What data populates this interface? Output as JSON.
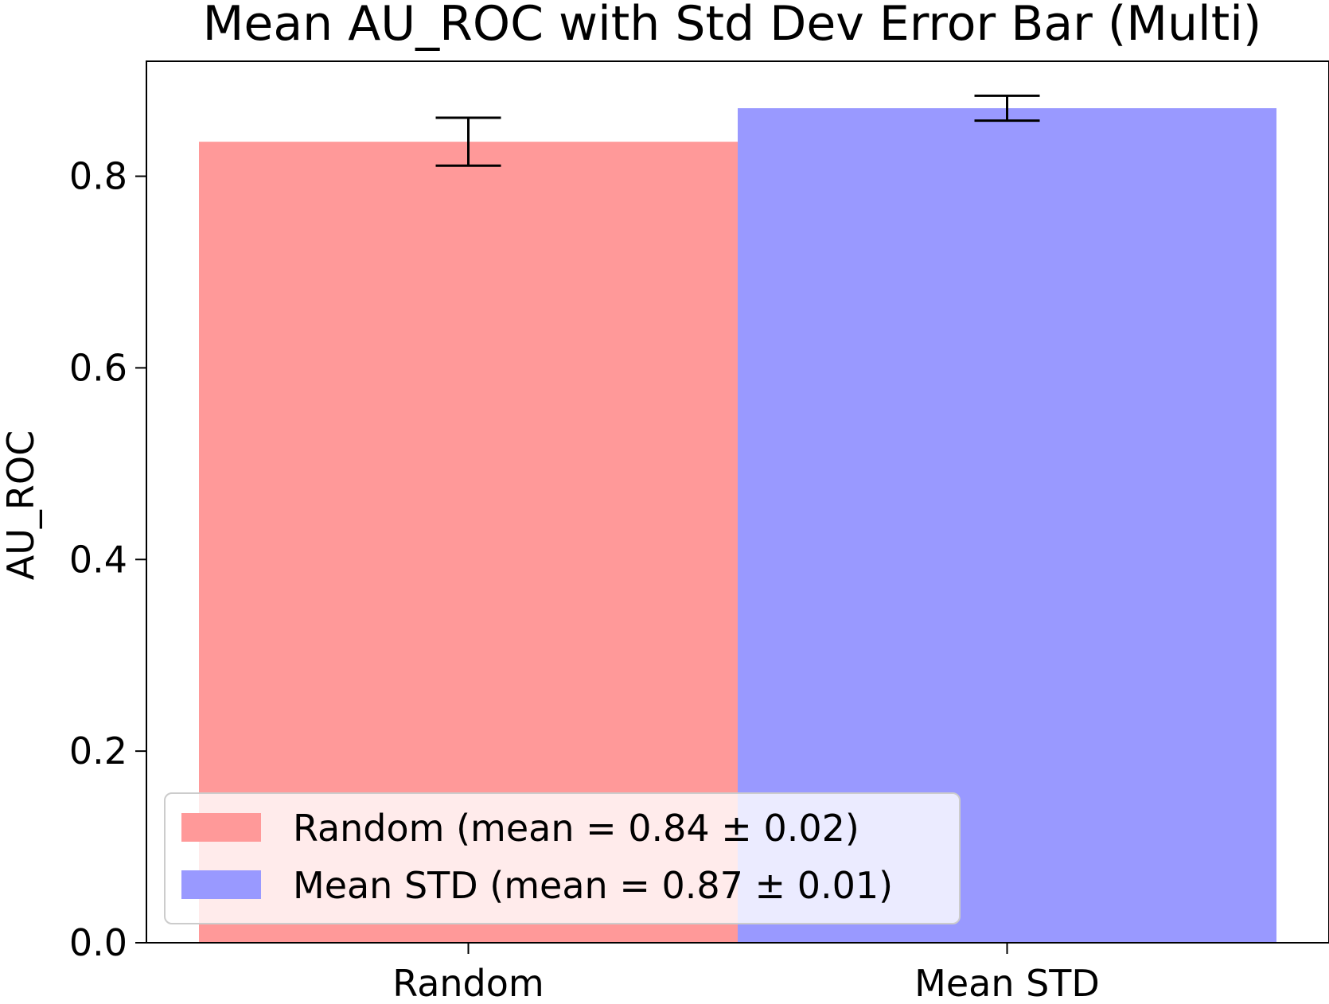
{
  "chart_data": {
    "type": "bar",
    "title": "Mean AU_ROC with Std Dev Error Bar (Multi)",
    "xlabel": "",
    "ylabel": "AU_ROC",
    "categories": [
      "Random",
      "Mean STD"
    ],
    "series": [
      {
        "name": "Random (mean = 0.84 ± 0.02)",
        "category": "Random",
        "value": 0.836,
        "error": 0.025,
        "color": "#ff9999"
      },
      {
        "name": "Mean STD (mean = 0.87 ± 0.01)",
        "category": "Mean STD",
        "value": 0.871,
        "error": 0.013,
        "color": "#9999ff"
      }
    ],
    "ylim": [
      0,
      0.92
    ],
    "yticks": [
      0.0,
      0.2,
      0.4,
      0.6,
      0.8
    ],
    "ytick_labels": [
      "0.0",
      "0.2",
      "0.4",
      "0.6",
      "0.8"
    ],
    "grid": false,
    "legend_position": "lower-left"
  }
}
